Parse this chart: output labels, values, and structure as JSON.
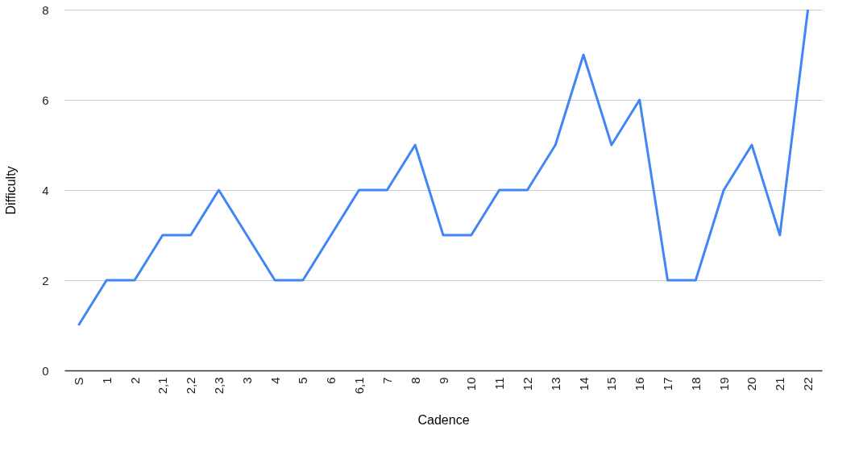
{
  "chart_data": {
    "type": "line",
    "xlabel": "Cadence",
    "ylabel": "Difficulty",
    "categories": [
      "S",
      "1",
      "2",
      "2,1",
      "2,2",
      "2,3",
      "3",
      "4",
      "5",
      "6",
      "6,1",
      "7",
      "8",
      "9",
      "10",
      "11",
      "12",
      "13",
      "14",
      "15",
      "16",
      "17",
      "18",
      "19",
      "20",
      "21",
      "22"
    ],
    "series": [
      {
        "color": "#4285f4",
        "values": [
          1,
          2,
          2,
          3,
          3,
          4,
          3,
          2,
          2,
          3,
          4,
          4,
          5,
          3,
          3,
          4,
          4,
          5,
          7,
          5,
          6,
          2,
          2,
          4,
          5,
          3,
          8
        ]
      }
    ],
    "ylim": [
      0,
      8
    ],
    "yticks": [
      0,
      2,
      4,
      6,
      8
    ],
    "grid": "y",
    "marker": "none",
    "line_style": "solid"
  }
}
